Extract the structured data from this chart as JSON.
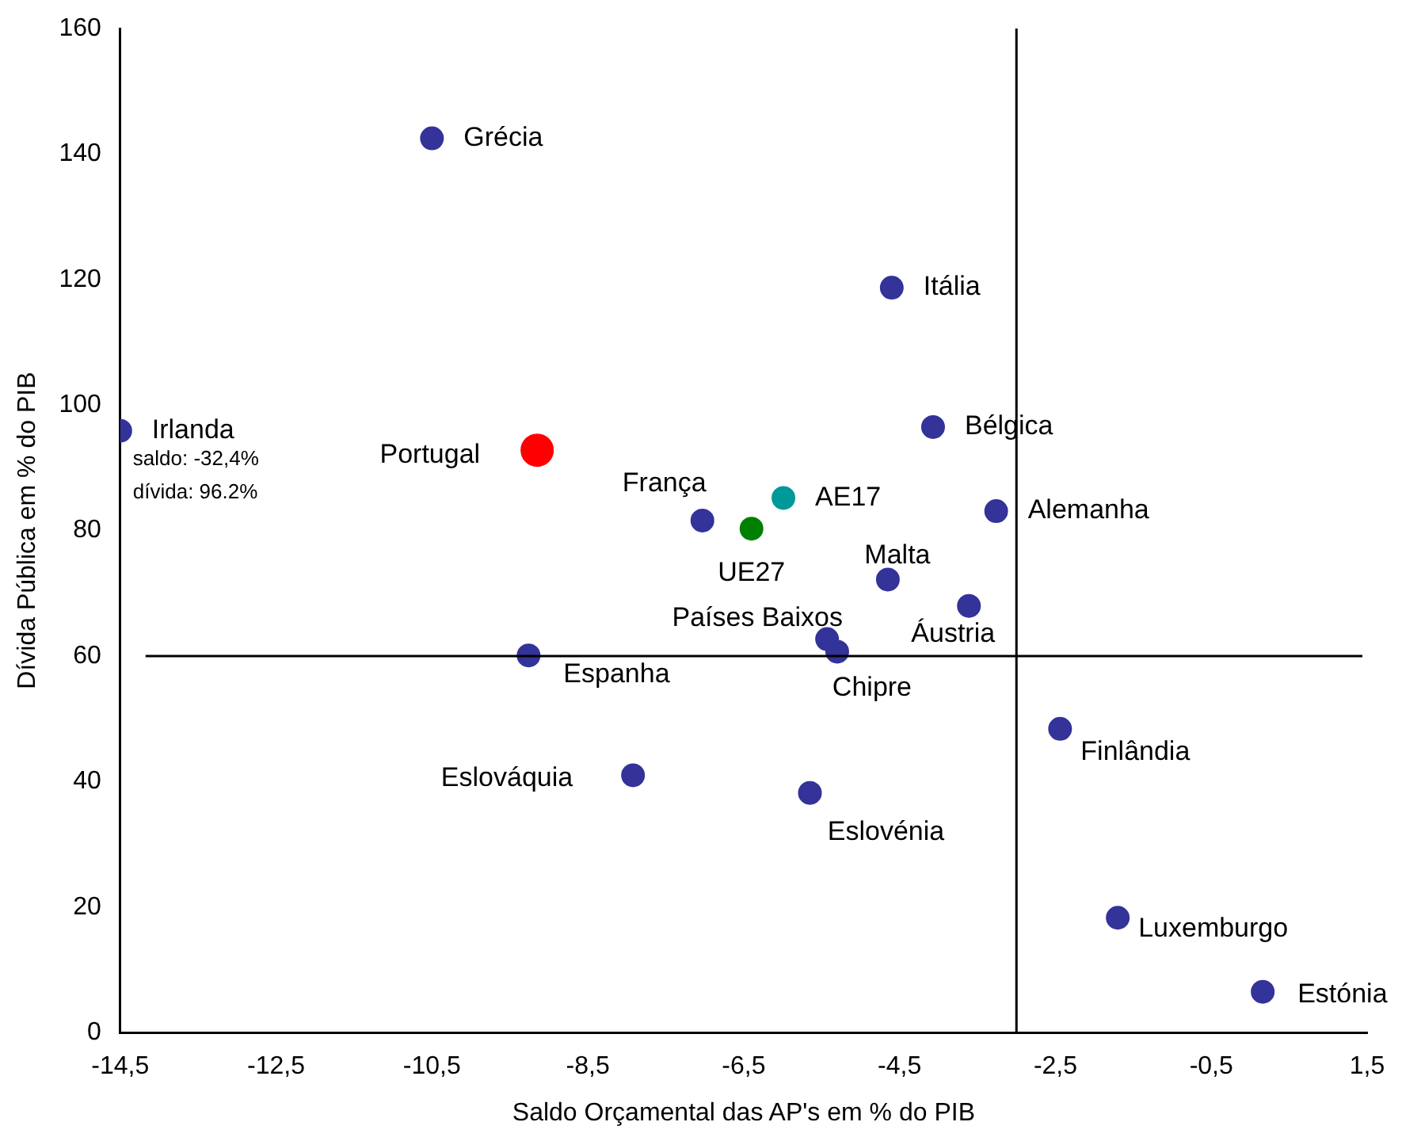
{
  "chart_data": {
    "type": "scatter",
    "xlabel": "Saldo Orçamental das AP's em % do PIB",
    "ylabel": "Dívida Pública em % do PIB",
    "xlim": [
      -14.5,
      1.5
    ],
    "xticks": [
      {
        "value": -14.5,
        "label": "-14,5"
      },
      {
        "value": -12.5,
        "label": "-12,5"
      },
      {
        "value": -10.5,
        "label": "-10,5"
      },
      {
        "value": -8.5,
        "label": "-8,5"
      },
      {
        "value": -6.5,
        "label": "-6,5"
      },
      {
        "value": -4.5,
        "label": "-4,5"
      },
      {
        "value": -2.5,
        "label": "-2,5"
      },
      {
        "value": -0.5,
        "label": "-0,5"
      },
      {
        "value": 1.5,
        "label": "1,5"
      }
    ],
    "ylim": [
      0,
      160
    ],
    "yticks": [
      0,
      20,
      40,
      60,
      80,
      100,
      120,
      140,
      160
    ],
    "grid": false,
    "legend": false,
    "marker": "circle",
    "ref_lines": [
      {
        "axis": "x",
        "value": -3
      },
      {
        "axis": "y",
        "value": 60
      }
    ],
    "annotations": [
      "saldo: -32,4%",
      "dívida: 96.2%"
    ],
    "series": [
      {
        "name": "Grécia",
        "color": "#333399",
        "x": [
          -10.5
        ],
        "values": [
          142.5
        ]
      },
      {
        "name": "Itália",
        "color": "#333399",
        "x": [
          -4.6
        ],
        "values": [
          118.7
        ]
      },
      {
        "name": "Irlanda",
        "color": "#333399",
        "x": [
          -14.5
        ],
        "values": [
          95.9
        ]
      },
      {
        "name": "Portugal",
        "color": "#ff0000",
        "x": [
          -9.15
        ],
        "values": [
          92.8
        ]
      },
      {
        "name": "Bélgica",
        "color": "#333399",
        "x": [
          -4.07
        ],
        "values": [
          96.5
        ]
      },
      {
        "name": "França",
        "color": "#333399",
        "x": [
          -7.03
        ],
        "values": [
          81.6
        ]
      },
      {
        "name": "AE17",
        "color": "#009999",
        "x": [
          -5.99
        ],
        "values": [
          85.2
        ]
      },
      {
        "name": "UE27",
        "color": "#008000",
        "x": [
          -6.4
        ],
        "values": [
          80.3
        ]
      },
      {
        "name": "Alemanha",
        "color": "#333399",
        "x": [
          -3.26
        ],
        "values": [
          83.1
        ]
      },
      {
        "name": "Malta",
        "color": "#333399",
        "x": [
          -4.65
        ],
        "values": [
          72.2
        ]
      },
      {
        "name": "Áustria",
        "color": "#333399",
        "x": [
          -3.61
        ],
        "values": [
          68.0
        ]
      },
      {
        "name": "Países Baixos",
        "color": "#333399",
        "x": [
          -5.43
        ],
        "values": [
          62.7
        ]
      },
      {
        "name": "Chipre",
        "color": "#333399",
        "x": [
          -5.3
        ],
        "values": [
          60.7
        ]
      },
      {
        "name": "Espanha",
        "color": "#333399",
        "x": [
          -9.26
        ],
        "values": [
          60.1
        ]
      },
      {
        "name": "Eslováquia",
        "color": "#333399",
        "x": [
          -7.92
        ],
        "values": [
          41.0
        ]
      },
      {
        "name": "Eslovénia",
        "color": "#333399",
        "x": [
          -5.65
        ],
        "values": [
          38.2
        ]
      },
      {
        "name": "Finlândia",
        "color": "#333399",
        "x": [
          -2.44
        ],
        "values": [
          48.4
        ]
      },
      {
        "name": "Luxemburgo",
        "color": "#333399",
        "x": [
          -1.7
        ],
        "values": [
          18.3
        ]
      },
      {
        "name": "Estónia",
        "color": "#333399",
        "x": [
          0.16
        ],
        "values": [
          6.5
        ]
      }
    ]
  }
}
